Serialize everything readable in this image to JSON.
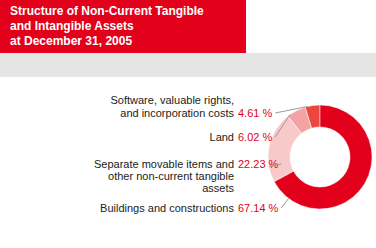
{
  "chart_data": {
    "type": "pie",
    "title": "Structure of Non-Current Tangible\nand Intangible Assets\nat December 31, 2005",
    "categories": [
      "Software, valuable rights,\nand incorporation costs",
      "Land",
      "Separate movable items and\nother non-current tangible\nassets",
      "Buildings and constructions"
    ],
    "values": [
      4.61,
      6.02,
      22.23,
      67.14
    ],
    "value_labels": [
      "4.61 %",
      "6.02 %",
      "22.23 %",
      "67.14 %"
    ],
    "colors": [
      "#e9473f",
      "#f3a3a3",
      "#f8c9c9",
      "#e2001a"
    ],
    "data_labels": true
  }
}
